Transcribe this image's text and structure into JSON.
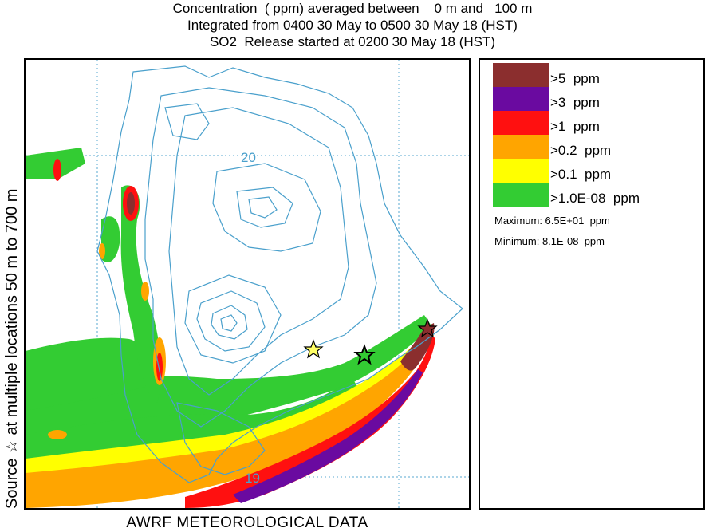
{
  "title": {
    "line1": "Concentration  ( ppm) averaged between    0 m and   100 m",
    "line2": "Integrated from 0400 30 May to 0500 30 May 18 (HST)",
    "line3": "SO2  Release started at 0200 30 May 18 (HST)"
  },
  "y_axis_label": "Source ☆  at multiple locations       50 m to   700 m",
  "x_axis_label": "AWRF METEOROLOGICAL DATA",
  "map": {
    "contour_labels": [
      "20",
      "19"
    ],
    "contour_color": "#4aa0cc",
    "grid_color": "#5aa8d0",
    "source_marker": "star"
  },
  "legend": {
    "items": [
      {
        "label": ">5  ppm",
        "color": "#8b2e2e"
      },
      {
        "label": ">3  ppm",
        "color": "#6a0aa0"
      },
      {
        "label": ">1  ppm",
        "color": "#ff1010"
      },
      {
        "label": ">0.2  ppm",
        "color": "#ffa500"
      },
      {
        "label": ">0.1  ppm",
        "color": "#ffff00"
      },
      {
        "label": ">1.0E-08  ppm",
        "color": "#33cc33"
      }
    ],
    "maximum": "Maximum: 6.5E+01  ppm",
    "minimum": "Minimum: 8.1E-08  ppm"
  }
}
